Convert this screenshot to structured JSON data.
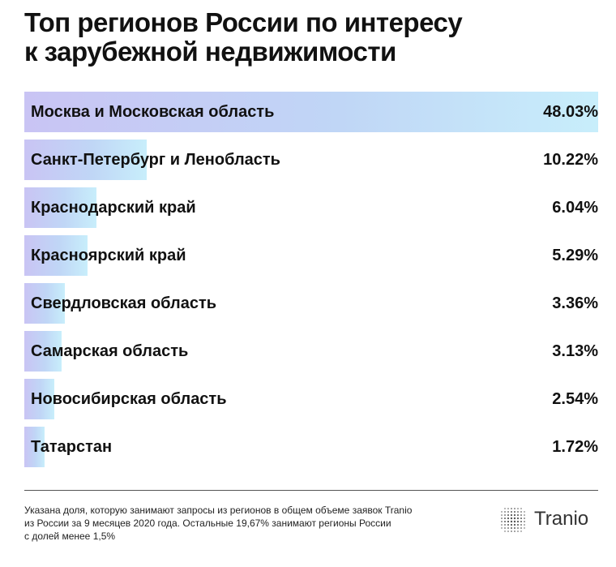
{
  "title_line1": "Топ регионов России по интересу",
  "title_line2": "к зарубежной недвижимости",
  "chart_data": {
    "type": "bar",
    "orientation": "horizontal",
    "categories": [
      "Москва и Московская область",
      "Санкт-Петербург и Ленобласть",
      "Краснодарский край",
      "Красноярский край",
      "Свердловская область",
      "Самарская область",
      "Новосибирская область",
      "Татарстан"
    ],
    "values": [
      48.03,
      10.22,
      6.04,
      5.29,
      3.36,
      3.13,
      2.54,
      1.72
    ],
    "value_labels": [
      "48.03%",
      "10.22%",
      "6.04%",
      "5.29%",
      "3.36%",
      "3.13%",
      "2.54%",
      "1.72%"
    ],
    "xlim": [
      0,
      48.03
    ],
    "colors": {
      "bar_start": "#c9c4f4",
      "bar_end": "#c8eefb"
    }
  },
  "footnote_lines": [
    "Указана доля, которую занимают запросы из регионов в общем объеме заявок Tranio",
    "из России за 9 месяцев 2020 года. Остальные 19,67% занимают регионы России",
    "с долей менее 1,5%"
  ],
  "logo": {
    "text": "Tranio",
    "icon": "globe-dots-icon"
  }
}
